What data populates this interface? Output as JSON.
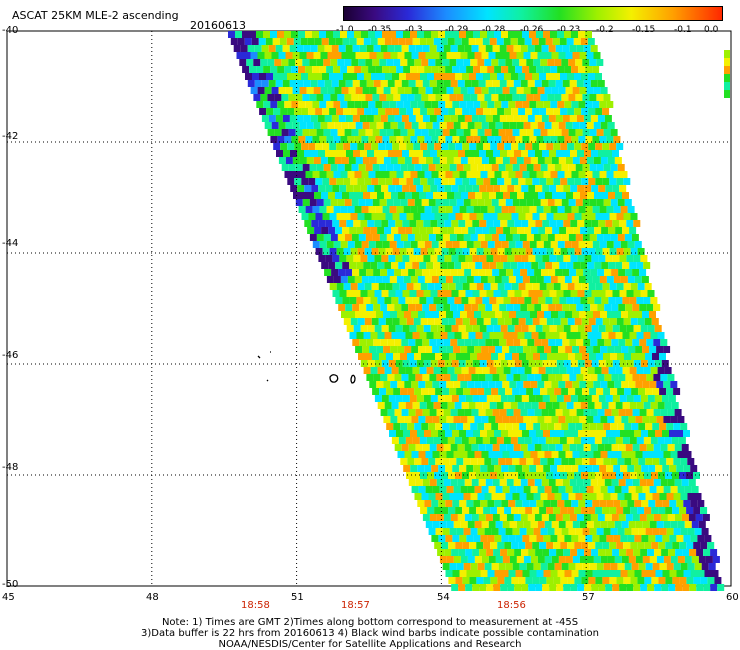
{
  "header": {
    "title": "ASCAT 25KM MLE-2 ascending",
    "date": "20160613"
  },
  "colorbar": {
    "labels": [
      "-1.0",
      "-0.35",
      "-0.3",
      "-0.29",
      "-0.28",
      "-0.26",
      "-0.23",
      "-0.2",
      "-0.15",
      "-0.1",
      "0.0"
    ],
    "colors": [
      "#1a0033",
      "#3a0a80",
      "#2a2ad8",
      "#1c8cff",
      "#00e4ff",
      "#10f0a0",
      "#22e022",
      "#9ef000",
      "#f4f000",
      "#ffa000",
      "#ff2800"
    ]
  },
  "axes": {
    "lat_labels": [
      "-40",
      "-42",
      "-44",
      "-46",
      "-48",
      "-50"
    ],
    "lon_labels": [
      "45",
      "48",
      "51",
      "54",
      "57",
      "60"
    ],
    "time_labels": [
      "18:58",
      "18:57",
      "18:56"
    ],
    "lat_range": [
      -50,
      -40
    ],
    "lon_range": [
      45,
      60
    ],
    "grid": "dotted"
  },
  "notes": {
    "line1": "Note: 1) Times are GMT 2)Times along bottom correspond to measurement at -45S",
    "line2": "3)Data buffer is 22 hrs from 20160613 4) Black wind barbs indicate possible contamination",
    "line3": "NOAA/NESDIS/Center for Satellite Applications and Research"
  }
}
